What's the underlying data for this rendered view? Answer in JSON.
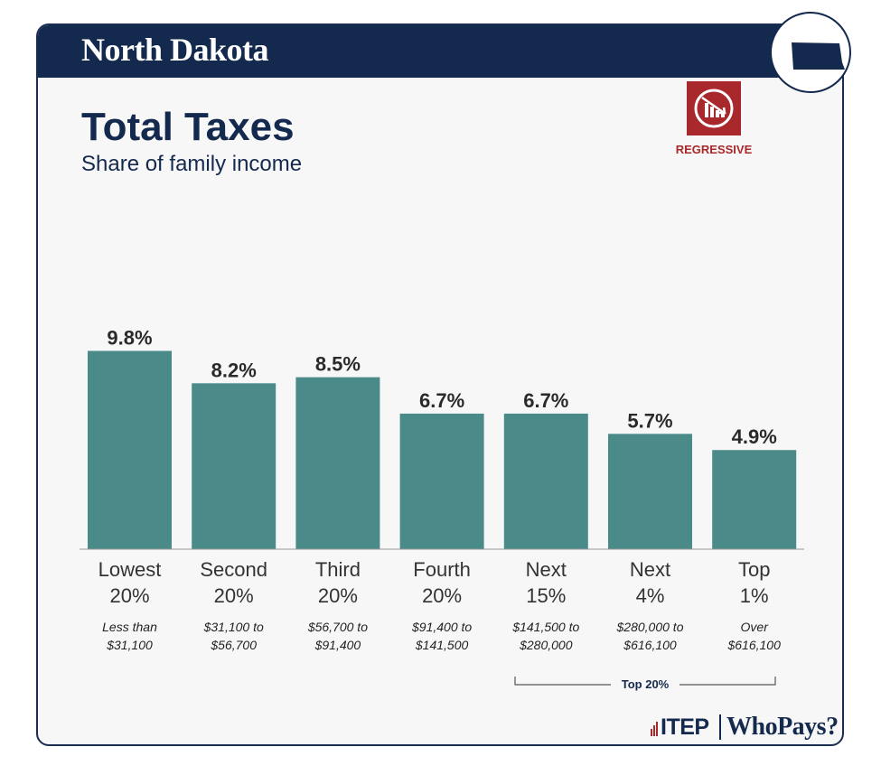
{
  "header": {
    "state_name": "North Dakota",
    "title": "Total Taxes",
    "subtitle": "Share of family income",
    "badge_label": "REGRESSIVE",
    "badge_icon": "regressive-chart-icon"
  },
  "chart_data": {
    "type": "bar",
    "categories": [
      [
        "Lowest",
        "20%"
      ],
      [
        "Second",
        "20%"
      ],
      [
        "Third",
        "20%"
      ],
      [
        "Fourth",
        "20%"
      ],
      [
        "Next",
        "15%"
      ],
      [
        "Next",
        "4%"
      ],
      [
        "Top",
        "1%"
      ]
    ],
    "ranges": [
      [
        "Less than",
        "$31,100"
      ],
      [
        "$31,100 to",
        "$56,700"
      ],
      [
        "$56,700 to",
        "$91,400"
      ],
      [
        "$91,400 to",
        "$141,500"
      ],
      [
        "$141,500 to",
        "$280,000"
      ],
      [
        "$280,000 to",
        "$616,100"
      ],
      [
        "Over",
        "$616,100"
      ]
    ],
    "values": [
      9.8,
      8.2,
      8.5,
      6.7,
      6.7,
      5.7,
      4.9
    ],
    "value_labels": [
      "9.8%",
      "8.2%",
      "8.5%",
      "6.7%",
      "6.7%",
      "5.7%",
      "4.9%"
    ],
    "ylim": [
      0,
      10
    ],
    "grid": false,
    "bracket_label": "Top 20%",
    "bar_color": "#4a8a89"
  },
  "footer": {
    "brand_itep": "ITEP",
    "brand_whopays": "WhoPays?"
  },
  "colors": {
    "navy": "#14294e",
    "bar": "#4a8a89",
    "regressive": "#a8282b"
  }
}
